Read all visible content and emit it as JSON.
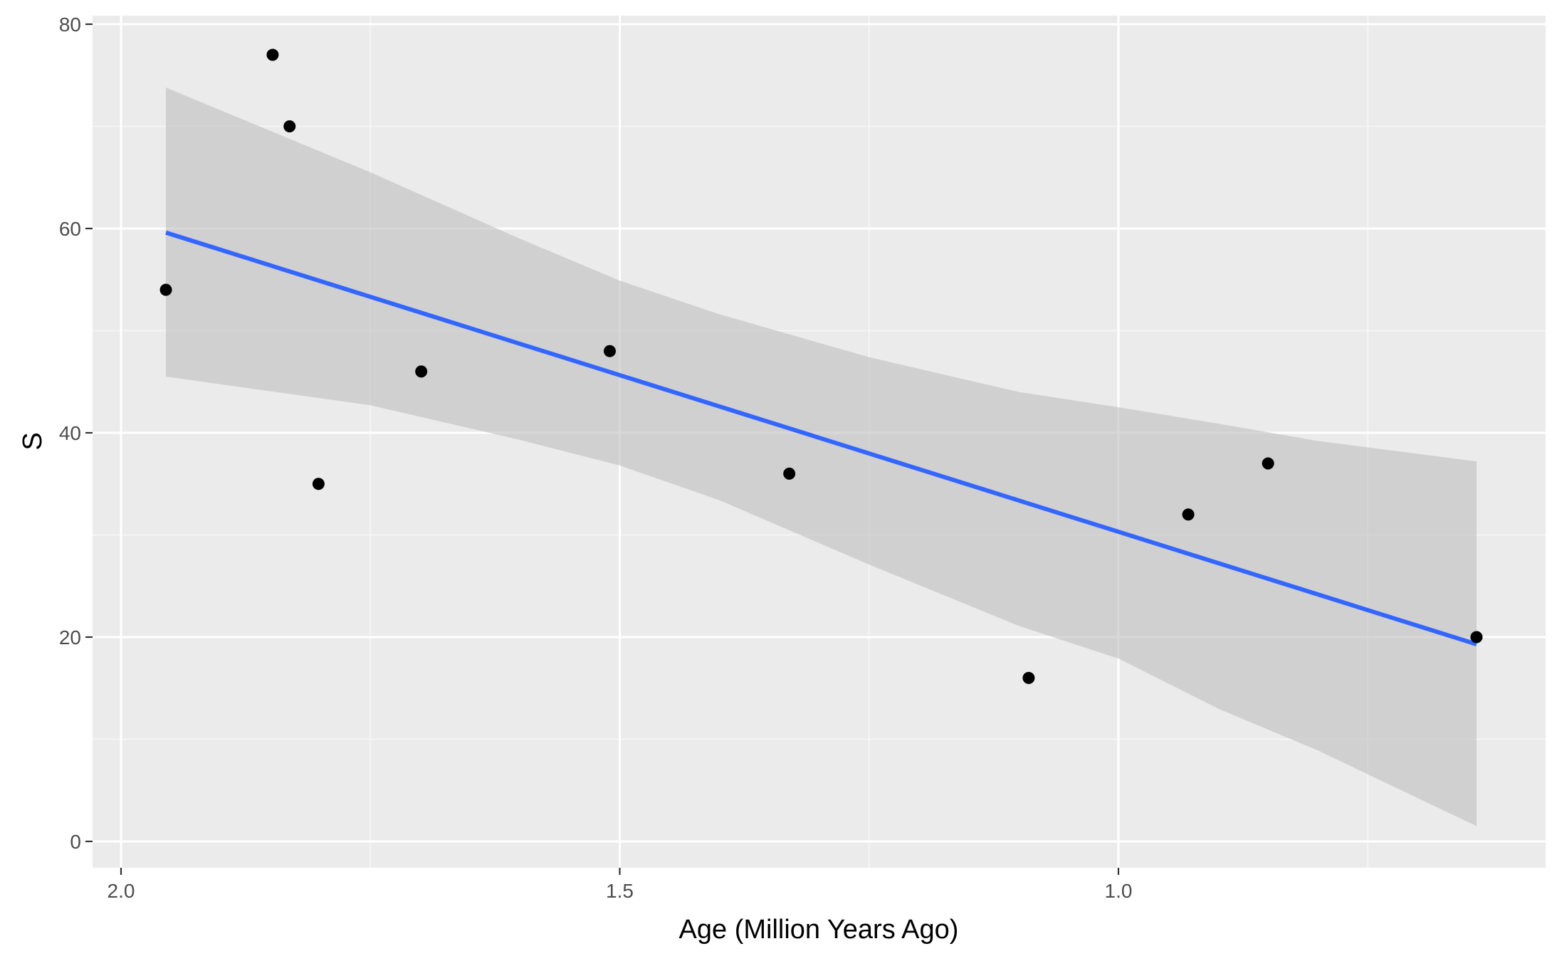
{
  "chart_data": {
    "type": "scatter",
    "title": "",
    "xlabel": "Age (Million Years Ago)",
    "ylabel": "S",
    "x_reversed": true,
    "xlim": [
      2.0,
      0.64
    ],
    "ylim": [
      -2.5,
      81
    ],
    "x_ticks": [
      2.0,
      1.5,
      1.0
    ],
    "x_tick_labels": [
      "2.0",
      "1.5",
      "1.0"
    ],
    "x_minor_ticks": [
      1.75,
      1.25,
      0.75
    ],
    "y_ticks": [
      0,
      20,
      40,
      60,
      80
    ],
    "y_tick_labels": [
      "0",
      "20",
      "40",
      "60",
      "80"
    ],
    "y_minor_ticks": [
      10,
      30,
      50,
      70
    ],
    "grid": true,
    "points": [
      {
        "x": 1.955,
        "y": 54
      },
      {
        "x": 1.848,
        "y": 77
      },
      {
        "x": 1.831,
        "y": 70
      },
      {
        "x": 1.802,
        "y": 35
      },
      {
        "x": 1.699,
        "y": 46
      },
      {
        "x": 1.51,
        "y": 48
      },
      {
        "x": 1.33,
        "y": 36
      },
      {
        "x": 1.09,
        "y": 16
      },
      {
        "x": 0.93,
        "y": 32
      },
      {
        "x": 0.85,
        "y": 37
      },
      {
        "x": 0.641,
        "y": 20
      }
    ],
    "fit_line": [
      {
        "x": 1.955,
        "y": 59.6
      },
      {
        "x": 0.641,
        "y": 19.3
      }
    ],
    "confidence_band": [
      {
        "x": 1.955,
        "lower": 45.5,
        "upper": 73.8
      },
      {
        "x": 1.75,
        "lower": 42.7,
        "upper": 65.5
      },
      {
        "x": 1.6,
        "lower": 39.3,
        "upper": 59.0
      },
      {
        "x": 1.5,
        "lower": 36.8,
        "upper": 54.9
      },
      {
        "x": 1.4,
        "lower": 33.4,
        "upper": 51.6
      },
      {
        "x": 1.25,
        "lower": 27.1,
        "upper": 47.4
      },
      {
        "x": 1.1,
        "lower": 21.1,
        "upper": 44.0
      },
      {
        "x": 1.0,
        "lower": 17.9,
        "upper": 42.5
      },
      {
        "x": 0.9,
        "lower": 13.0,
        "upper": 40.9
      },
      {
        "x": 0.8,
        "lower": 8.9,
        "upper": 39.2
      },
      {
        "x": 0.641,
        "lower": 1.5,
        "upper": 37.2
      }
    ],
    "colors": {
      "panel": "#ebebeb",
      "grid_major": "#ffffff",
      "grid_minor": "#f7f7f7",
      "point": "#000000",
      "fit_line": "#3366ff",
      "band": "#bebebe"
    }
  }
}
